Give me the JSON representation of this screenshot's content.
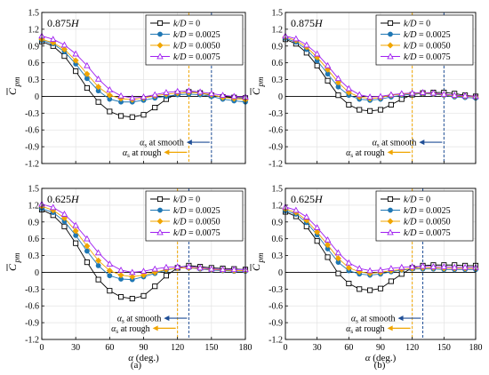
{
  "figure": {
    "xlabel_symbol": "α",
    "xlabel_unit": " (deg.)",
    "ylabel_main": "C",
    "ylabel_sub": "pm",
    "subfigure_labels": [
      "(a)",
      "(b)"
    ],
    "annotation_smooth": "at smooth",
    "annotation_rough": "at rough",
    "annotation_symbol": "α",
    "annotation_symbol_sub": "s",
    "legend_labels": [
      "k/D = 0",
      "k/D = 0.0025",
      "k/D = 0.0050",
      "k/D = 0.0075"
    ],
    "xticks": [
      0,
      30,
      60,
      90,
      120,
      150,
      180
    ],
    "yticks": [
      1.5,
      1.2,
      0.9,
      0.6,
      0.3,
      0,
      -0.3,
      -0.6,
      -0.9,
      -1.2
    ],
    "ytick_labels": [
      "1.5",
      "1.2",
      "0.9",
      "0.6",
      "0.3",
      "0",
      "-0.3",
      "-0.6",
      "-0.9",
      "-1.2"
    ],
    "series_colors": [
      "#000000",
      "#1f77b4",
      "#f0a500",
      "#a020f0"
    ],
    "marker_shapes": [
      "square",
      "circle",
      "diamond",
      "triangle"
    ],
    "smooth_line_color": "#1f4e96",
    "rough_line_color": "#f0a500",
    "grid": true
  },
  "chart_data": [
    {
      "type": "line",
      "height_label": "0.875H",
      "x": [
        0,
        10,
        20,
        30,
        40,
        50,
        60,
        70,
        80,
        90,
        100,
        110,
        120,
        130,
        140,
        150,
        160,
        170,
        180
      ],
      "xlim": [
        0,
        180
      ],
      "ylim": [
        -1.2,
        1.5
      ],
      "alpha_s_smooth": 150,
      "alpha_s_rough": 130,
      "series": [
        {
          "name": "k/D = 0",
          "values": [
            0.98,
            0.9,
            0.72,
            0.45,
            0.15,
            -0.1,
            -0.27,
            -0.35,
            -0.37,
            -0.33,
            -0.2,
            -0.05,
            0.05,
            0.08,
            0.06,
            0.02,
            -0.01,
            -0.02,
            -0.03
          ]
        },
        {
          "name": "k/D = 0.0025",
          "values": [
            1.0,
            0.94,
            0.8,
            0.58,
            0.32,
            0.1,
            -0.05,
            -0.1,
            -0.1,
            -0.07,
            -0.03,
            0.0,
            0.03,
            0.04,
            0.03,
            0.0,
            -0.05,
            -0.08,
            -0.1
          ]
        },
        {
          "name": "k/D = 0.0050",
          "values": [
            1.02,
            0.96,
            0.84,
            0.64,
            0.4,
            0.17,
            0.02,
            -0.04,
            -0.06,
            -0.03,
            0.01,
            0.04,
            0.06,
            0.07,
            0.06,
            0.03,
            -0.02,
            -0.04,
            -0.06
          ]
        },
        {
          "name": "k/D = 0.0075",
          "values": [
            1.08,
            1.02,
            0.92,
            0.76,
            0.55,
            0.31,
            0.12,
            0.01,
            -0.03,
            -0.01,
            0.03,
            0.07,
            0.09,
            0.1,
            0.08,
            0.05,
            0.02,
            0.0,
            -0.01
          ]
        }
      ]
    },
    {
      "type": "line",
      "height_label": "0.875H",
      "x": [
        0,
        10,
        20,
        30,
        40,
        50,
        60,
        70,
        80,
        90,
        100,
        110,
        120,
        130,
        140,
        150,
        160,
        170,
        180
      ],
      "xlim": [
        0,
        180
      ],
      "ylim": [
        -1.2,
        1.5
      ],
      "alpha_s_smooth": 150,
      "alpha_s_rough": 120,
      "series": [
        {
          "name": "k/D = 0",
          "values": [
            1.02,
            0.94,
            0.78,
            0.55,
            0.28,
            0.02,
            -0.15,
            -0.24,
            -0.26,
            -0.24,
            -0.15,
            -0.05,
            0.03,
            0.06,
            0.07,
            0.07,
            0.05,
            0.02,
            0.0
          ]
        },
        {
          "name": "k/D = 0.0025",
          "values": [
            1.04,
            0.97,
            0.84,
            0.64,
            0.4,
            0.17,
            0.02,
            -0.05,
            -0.07,
            -0.05,
            -0.01,
            0.02,
            0.04,
            0.05,
            0.04,
            0.02,
            -0.01,
            -0.02,
            -0.03
          ]
        },
        {
          "name": "k/D = 0.0050",
          "values": [
            1.06,
            1.0,
            0.88,
            0.7,
            0.48,
            0.25,
            0.07,
            -0.01,
            -0.04,
            -0.02,
            0.02,
            0.04,
            0.05,
            0.06,
            0.05,
            0.03,
            0.01,
            0.0,
            -0.01
          ]
        },
        {
          "name": "k/D = 0.0075",
          "values": [
            1.08,
            1.03,
            0.92,
            0.76,
            0.55,
            0.32,
            0.14,
            0.03,
            -0.01,
            0.0,
            0.03,
            0.05,
            0.06,
            0.07,
            0.06,
            0.04,
            0.02,
            0.01,
            0.0
          ]
        }
      ]
    },
    {
      "type": "line",
      "height_label": "0.625H",
      "x": [
        0,
        10,
        20,
        30,
        40,
        50,
        60,
        70,
        80,
        90,
        100,
        110,
        120,
        130,
        140,
        150,
        160,
        170,
        180
      ],
      "xlim": [
        0,
        180
      ],
      "ylim": [
        -1.2,
        1.5
      ],
      "alpha_s_smooth": 130,
      "alpha_s_rough": 120,
      "series": [
        {
          "name": "k/D = 0",
          "values": [
            1.12,
            1.02,
            0.82,
            0.52,
            0.18,
            -0.13,
            -0.33,
            -0.44,
            -0.47,
            -0.42,
            -0.25,
            -0.06,
            0.08,
            0.12,
            0.1,
            0.08,
            0.07,
            0.06,
            0.05
          ]
        },
        {
          "name": "k/D = 0.0025",
          "values": [
            1.14,
            1.07,
            0.91,
            0.66,
            0.38,
            0.12,
            -0.06,
            -0.12,
            -0.13,
            -0.08,
            -0.02,
            0.04,
            0.08,
            0.08,
            0.06,
            0.04,
            0.03,
            0.02,
            0.02
          ]
        },
        {
          "name": "k/D = 0.0050",
          "values": [
            1.18,
            1.11,
            0.97,
            0.74,
            0.47,
            0.21,
            0.03,
            -0.05,
            -0.08,
            -0.05,
            0.0,
            0.05,
            0.08,
            0.08,
            0.07,
            0.05,
            0.04,
            0.03,
            0.03
          ]
        },
        {
          "name": "k/D = 0.0075",
          "values": [
            1.22,
            1.16,
            1.04,
            0.84,
            0.6,
            0.35,
            0.15,
            0.04,
            0.0,
            0.02,
            0.06,
            0.09,
            0.1,
            0.1,
            0.08,
            0.06,
            0.05,
            0.05,
            0.05
          ]
        }
      ]
    },
    {
      "type": "line",
      "height_label": "0.625H",
      "x": [
        0,
        10,
        20,
        30,
        40,
        50,
        60,
        70,
        80,
        90,
        100,
        110,
        120,
        130,
        140,
        150,
        160,
        170,
        180
      ],
      "xlim": [
        0,
        180
      ],
      "ylim": [
        -1.2,
        1.5
      ],
      "alpha_s_smooth": 130,
      "alpha_s_rough": 120,
      "series": [
        {
          "name": "k/D = 0",
          "values": [
            1.08,
            1.0,
            0.82,
            0.56,
            0.27,
            -0.02,
            -0.2,
            -0.3,
            -0.32,
            -0.29,
            -0.16,
            -0.03,
            0.08,
            0.12,
            0.13,
            0.13,
            0.13,
            0.12,
            0.12
          ]
        },
        {
          "name": "k/D = 0.0025",
          "values": [
            1.1,
            1.04,
            0.89,
            0.67,
            0.42,
            0.18,
            0.03,
            -0.03,
            -0.05,
            -0.03,
            0.01,
            0.04,
            0.06,
            0.06,
            0.06,
            0.05,
            0.05,
            0.05,
            0.05
          ]
        },
        {
          "name": "k/D = 0.0050",
          "values": [
            1.13,
            1.07,
            0.93,
            0.72,
            0.49,
            0.25,
            0.08,
            0.01,
            -0.02,
            0.0,
            0.03,
            0.05,
            0.07,
            0.08,
            0.08,
            0.07,
            0.07,
            0.07,
            0.07
          ]
        },
        {
          "name": "k/D = 0.0075",
          "values": [
            1.17,
            1.11,
            0.99,
            0.8,
            0.58,
            0.35,
            0.17,
            0.07,
            0.03,
            0.04,
            0.07,
            0.09,
            0.1,
            0.11,
            0.1,
            0.1,
            0.09,
            0.09,
            0.09
          ]
        }
      ]
    }
  ]
}
